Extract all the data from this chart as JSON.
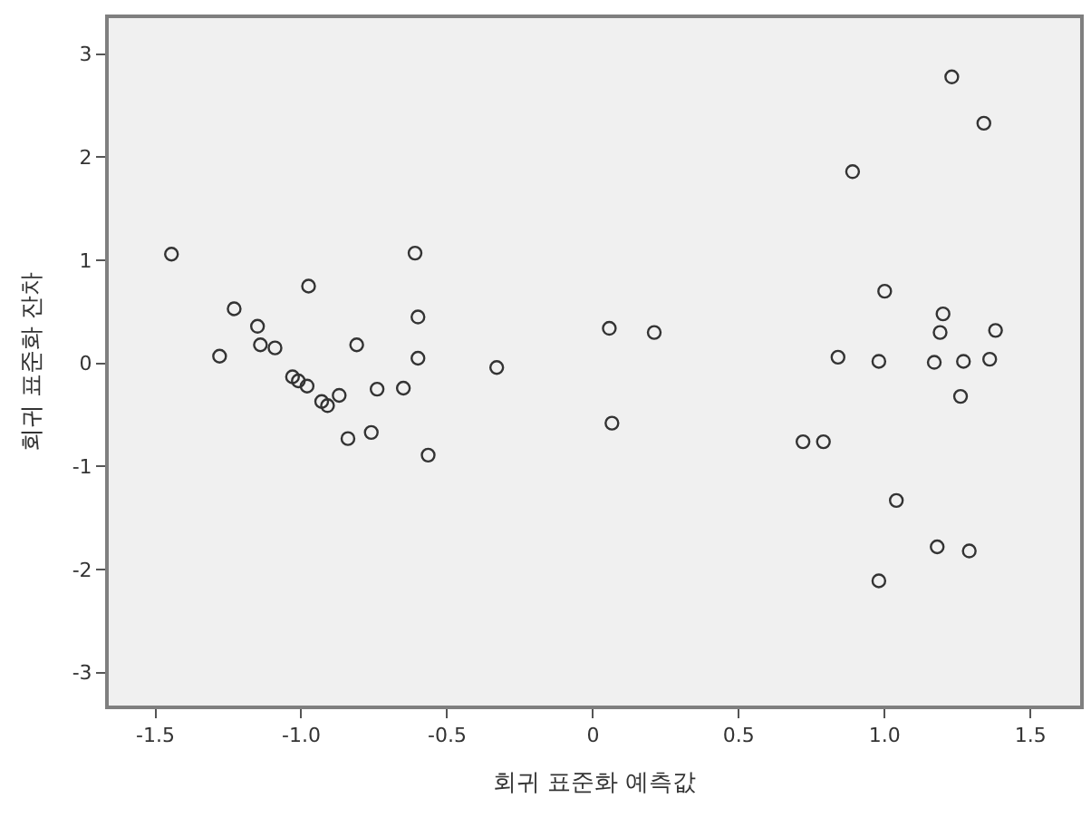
{
  "chart_data": {
    "type": "scatter",
    "xlabel": "회귀 표준화 예측값",
    "ylabel": "회귀 표준화 잔차",
    "x": [
      -1.445,
      -1.28,
      -1.23,
      -1.15,
      -1.14,
      -1.09,
      -1.03,
      -1.01,
      -0.98,
      -0.975,
      -0.93,
      -0.91,
      -0.87,
      -0.84,
      -0.81,
      -0.76,
      -0.74,
      -0.65,
      -0.61,
      -0.6,
      -0.6,
      -0.565,
      -0.33,
      0.056,
      0.065,
      0.21,
      0.72,
      0.79,
      0.84,
      0.89,
      0.98,
      0.98,
      1.0,
      1.04,
      1.17,
      1.18,
      1.19,
      1.2,
      1.23,
      1.26,
      1.27,
      1.29,
      1.34,
      1.36,
      1.38
    ],
    "series": [
      {
        "color": "#333333",
        "values": [
          1.06,
          0.07,
          0.53,
          0.36,
          0.18,
          0.15,
          -0.13,
          -0.17,
          -0.22,
          0.75,
          -0.37,
          -0.41,
          -0.31,
          -0.73,
          0.18,
          -0.67,
          -0.25,
          -0.24,
          1.07,
          0.45,
          0.05,
          -0.89,
          -0.04,
          0.34,
          -0.58,
          0.3,
          -0.76,
          -0.76,
          0.06,
          1.86,
          0.02,
          -2.11,
          0.7,
          -1.33,
          0.01,
          -1.78,
          0.3,
          0.48,
          2.78,
          -0.32,
          0.02,
          -1.82,
          2.33,
          0.04,
          0.32
        ]
      }
    ],
    "xlim": [
      -1.66,
      1.67
    ],
    "ylim": [
      -3.32,
      3.35
    ],
    "xticks": [
      {
        "value": -1.5,
        "label": "-1.5"
      },
      {
        "value": -1.0,
        "label": "-1.0"
      },
      {
        "value": -0.5,
        "label": "-0.5"
      },
      0,
      {
        "value": 0.5,
        "label": "0.5"
      },
      {
        "value": 1.0,
        "label": "1.0"
      },
      {
        "value": 1.5,
        "label": "1.5"
      }
    ],
    "yticks": [
      -3,
      -2,
      -1,
      0,
      1,
      2,
      3
    ],
    "marker": "circle",
    "grid": false
  }
}
